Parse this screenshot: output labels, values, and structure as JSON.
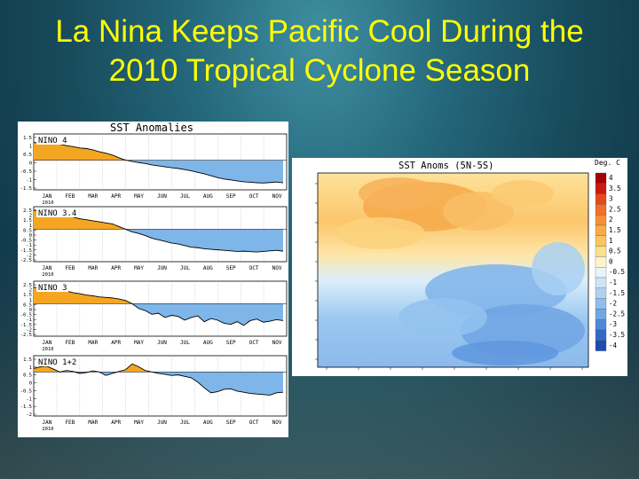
{
  "slide": {
    "title_line1": "La Nina Keeps Pacific Cool During the",
    "title_line2": "2010 Tropical Cyclone Season"
  },
  "left_figure": {
    "title": "SST Anomalies",
    "months": [
      "JAN",
      "FEB",
      "MAR",
      "APR",
      "MAY",
      "JUN",
      "JUL",
      "AUG",
      "SEP",
      "OCT",
      "NOV"
    ],
    "year": "2010",
    "positive_color": "#f4a622",
    "negative_color": "#7eb6ea",
    "panels": [
      {
        "name": "NINO 4",
        "yticks": [
          "1.5",
          "1",
          "0.5",
          "0",
          "-0.5",
          "-1",
          "-1.5"
        ]
      },
      {
        "name": "NINO 3.4",
        "yticks": [
          "2.5",
          "2",
          "1.5",
          "1",
          "0.5",
          "0",
          "-0.5",
          "-1",
          "-1.5",
          "-2",
          "-2.5"
        ]
      },
      {
        "name": "NINO 3",
        "yticks": [
          "2.5",
          "2",
          "1.5",
          "1",
          "0.5",
          "0",
          "-0.5",
          "-1",
          "-1.5",
          "-2",
          "-2.5"
        ]
      },
      {
        "name": "NINO 1+2",
        "yticks": [
          "1.5",
          "1",
          "0.5",
          "0",
          "-0.5",
          "-1",
          "-1.5",
          "-2"
        ]
      }
    ]
  },
  "right_figure": {
    "title": "SST Anoms (5N-5S)",
    "units": "Deg. C",
    "colorbar": [
      {
        "label": "4",
        "color": "#a80000"
      },
      {
        "label": "3.5",
        "color": "#cc1a10"
      },
      {
        "label": "3",
        "color": "#e64a1a"
      },
      {
        "label": "2.5",
        "color": "#f46d2a"
      },
      {
        "label": "2",
        "color": "#f78e35"
      },
      {
        "label": "1.5",
        "color": "#f9aa48"
      },
      {
        "label": "1",
        "color": "#fbc45e"
      },
      {
        "label": "0.5",
        "color": "#fde08a"
      },
      {
        "label": "0",
        "color": "#fff4cc"
      },
      {
        "label": "-0.5",
        "color": "#e9f4fc"
      },
      {
        "label": "-1",
        "color": "#cfe4f7"
      },
      {
        "label": "-1.5",
        "color": "#b0d2f1"
      },
      {
        "label": "-2",
        "color": "#8fbdec"
      },
      {
        "label": "-2.5",
        "color": "#6fa6e3"
      },
      {
        "label": "-3",
        "color": "#4f8ad8"
      },
      {
        "label": "-3.5",
        "color": "#2f6cc8"
      },
      {
        "label": "-4",
        "color": "#1e4db0"
      }
    ]
  }
}
